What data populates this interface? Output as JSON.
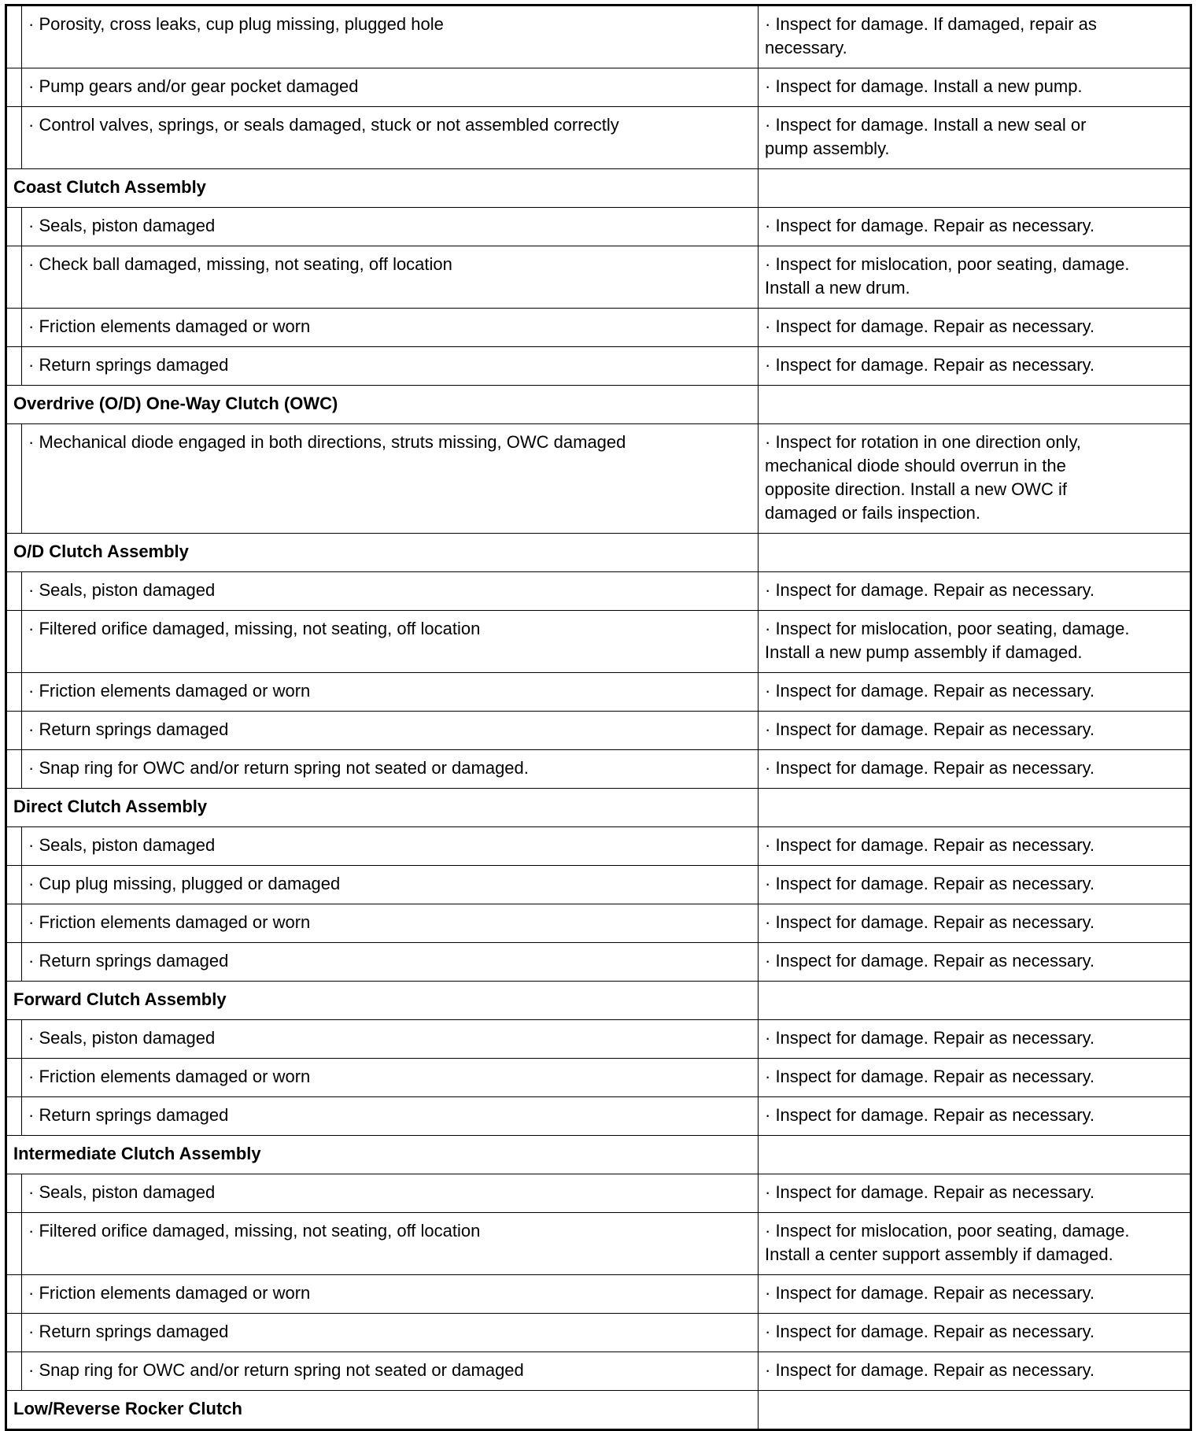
{
  "rows": [
    {
      "type": "item",
      "symptom": "· Porosity, cross leaks, cup plug missing, plugged hole",
      "action": "· Inspect for damage. If damaged, repair as\nnecessary."
    },
    {
      "type": "item",
      "symptom": "· Pump gears and/or gear pocket damaged",
      "action": "· Inspect for damage. Install a new pump."
    },
    {
      "type": "item",
      "symptom": "· Control valves, springs, or seals damaged, stuck or not assembled correctly",
      "action": "· Inspect for damage. Install a new seal or\npump assembly."
    },
    {
      "type": "heading",
      "title": "Coast Clutch Assembly"
    },
    {
      "type": "item",
      "symptom": "· Seals, piston damaged",
      "action": "· Inspect for damage. Repair as necessary."
    },
    {
      "type": "item",
      "symptom": "· Check ball damaged, missing, not seating, off location",
      "action": "· Inspect for mislocation, poor seating, damage.\nInstall a new drum."
    },
    {
      "type": "item",
      "symptom": "· Friction elements damaged or worn",
      "action": "· Inspect for damage. Repair as necessary."
    },
    {
      "type": "item",
      "symptom": "· Return springs damaged",
      "action": "· Inspect for damage. Repair as necessary."
    },
    {
      "type": "heading",
      "title": "Overdrive (O/D) One-Way Clutch (OWC)"
    },
    {
      "type": "item",
      "symptom": "· Mechanical diode engaged in both directions, struts missing, OWC damaged",
      "action": "· Inspect for rotation in one direction only,\nmechanical diode should overrun in the\nopposite direction. Install a new OWC if\ndamaged or fails inspection."
    },
    {
      "type": "heading",
      "title": "O/D Clutch Assembly"
    },
    {
      "type": "item",
      "symptom": "· Seals, piston damaged",
      "action": "· Inspect for damage. Repair as necessary."
    },
    {
      "type": "item",
      "symptom": "· Filtered orifice damaged, missing, not seating, off location",
      "action": "· Inspect for mislocation, poor seating, damage.\nInstall a new pump assembly if damaged."
    },
    {
      "type": "item",
      "symptom": "· Friction elements damaged or worn",
      "action": "· Inspect for damage. Repair as necessary."
    },
    {
      "type": "item",
      "symptom": "· Return springs damaged",
      "action": "· Inspect for damage. Repair as necessary."
    },
    {
      "type": "item",
      "symptom": "· Snap ring for OWC and/or return spring not seated or damaged.",
      "action": "· Inspect for damage. Repair as necessary."
    },
    {
      "type": "heading",
      "title": "Direct Clutch Assembly"
    },
    {
      "type": "item",
      "symptom": "· Seals, piston damaged",
      "action": "· Inspect for damage. Repair as necessary."
    },
    {
      "type": "item",
      "symptom": "· Cup plug missing, plugged or damaged",
      "action": "· Inspect for damage. Repair as necessary."
    },
    {
      "type": "item",
      "symptom": "· Friction elements damaged or worn",
      "action": "· Inspect for damage. Repair as necessary."
    },
    {
      "type": "item",
      "symptom": "· Return springs damaged",
      "action": "· Inspect for damage. Repair as necessary."
    },
    {
      "type": "heading",
      "title": "Forward Clutch Assembly"
    },
    {
      "type": "item",
      "symptom": "· Seals, piston damaged",
      "action": "· Inspect for damage. Repair as necessary."
    },
    {
      "type": "item",
      "symptom": "· Friction elements damaged or worn",
      "action": "· Inspect for damage. Repair as necessary."
    },
    {
      "type": "item",
      "symptom": "· Return springs damaged",
      "action": "· Inspect for damage. Repair as necessary."
    },
    {
      "type": "heading",
      "title": "Intermediate Clutch Assembly"
    },
    {
      "type": "item",
      "symptom": "· Seals, piston damaged",
      "action": "· Inspect for damage. Repair as necessary."
    },
    {
      "type": "item",
      "symptom": "· Filtered orifice damaged, missing, not seating, off location",
      "action": "· Inspect for mislocation, poor seating, damage.\nInstall a center support assembly if damaged."
    },
    {
      "type": "item",
      "symptom": "· Friction elements damaged or worn",
      "action": "· Inspect for damage. Repair as necessary."
    },
    {
      "type": "item",
      "symptom": "· Return springs damaged",
      "action": "· Inspect for damage. Repair as necessary."
    },
    {
      "type": "item",
      "symptom": "· Snap ring for OWC and/or return spring not seated or damaged",
      "action": "· Inspect for damage. Repair as necessary."
    },
    {
      "type": "heading",
      "title": "Low/Reverse Rocker Clutch"
    }
  ]
}
